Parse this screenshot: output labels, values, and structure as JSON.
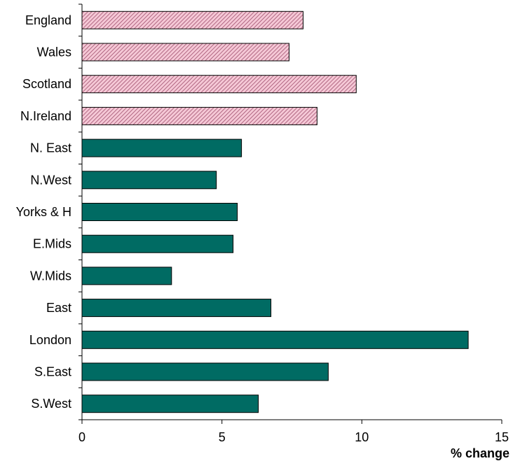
{
  "chart_data": {
    "type": "bar",
    "orientation": "horizontal",
    "categories": [
      "England",
      "Wales",
      "Scotland",
      "N.Ireland",
      "N. East",
      "N.West",
      "Yorks & H",
      "E.Mids",
      "W.Mids",
      "East",
      "London",
      "S.East",
      "S.West"
    ],
    "values": [
      7.9,
      7.4,
      9.8,
      8.4,
      5.7,
      4.8,
      5.55,
      5.4,
      3.2,
      6.75,
      13.8,
      8.8,
      6.3
    ],
    "groups": [
      "nation",
      "nation",
      "nation",
      "nation",
      "region",
      "region",
      "region",
      "region",
      "region",
      "region",
      "region",
      "region",
      "region"
    ],
    "group_styles": {
      "nation": {
        "pattern": "diagonal-hatch",
        "fill": "#f5c8d6",
        "stroke_color": "#a0506e"
      },
      "region": {
        "pattern": "solid",
        "fill": "#006b63"
      }
    },
    "xlabel": "% change",
    "xlim": [
      0,
      15
    ],
    "xticks": [
      0,
      5,
      10,
      15
    ],
    "xtick_labels": [
      "0",
      "5",
      "10",
      "15"
    ],
    "grid": false,
    "legend": null
  }
}
